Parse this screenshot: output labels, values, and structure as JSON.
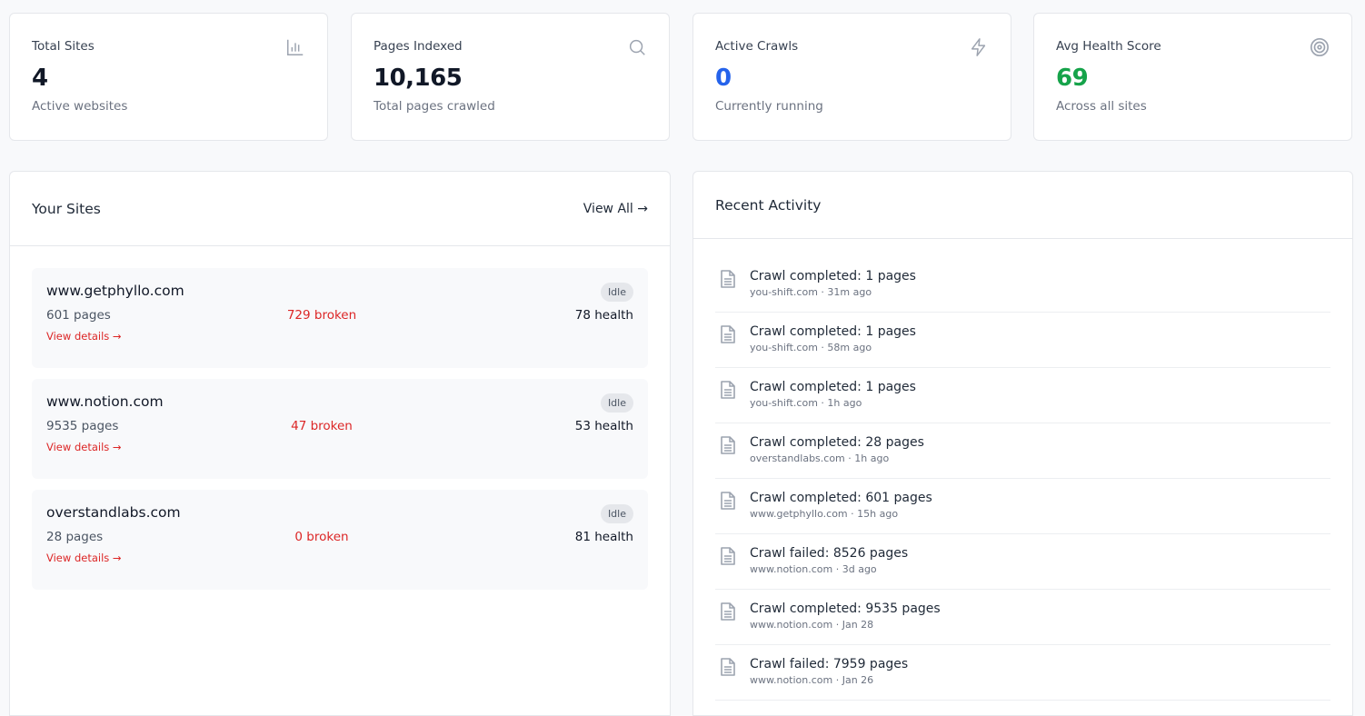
{
  "stats": [
    {
      "label": "Total Sites",
      "value": "4",
      "sub": "Active websites",
      "icon": "bar-chart-icon",
      "color": "#111827"
    },
    {
      "label": "Pages Indexed",
      "value": "10,165",
      "sub": "Total pages crawled",
      "icon": "search-icon",
      "color": "#111827"
    },
    {
      "label": "Active Crawls",
      "value": "0",
      "sub": "Currently running",
      "icon": "lightning-icon",
      "color": "#2563eb"
    },
    {
      "label": "Avg Health Score",
      "value": "69",
      "sub": "Across all sites",
      "icon": "target-icon",
      "color": "#16a34a"
    }
  ],
  "sites_panel": {
    "title": "Your Sites",
    "view_all": "View All →"
  },
  "sites": [
    {
      "name": "www.getphyllo.com",
      "status": "Idle",
      "pages": "601 pages",
      "broken": "729 broken",
      "health": "78 health",
      "link": "View details →"
    },
    {
      "name": "www.notion.com",
      "status": "Idle",
      "pages": "9535 pages",
      "broken": "47 broken",
      "health": "53 health",
      "link": "View details →"
    },
    {
      "name": "overstandlabs.com",
      "status": "Idle",
      "pages": "28 pages",
      "broken": "0 broken",
      "health": "81 health",
      "link": "View details →"
    }
  ],
  "activity_panel": {
    "title": "Recent Activity"
  },
  "activity": [
    {
      "title": "Crawl completed: 1 pages",
      "meta": "you-shift.com · 31m ago"
    },
    {
      "title": "Crawl completed: 1 pages",
      "meta": "you-shift.com · 58m ago"
    },
    {
      "title": "Crawl completed: 1 pages",
      "meta": "you-shift.com · 1h ago"
    },
    {
      "title": "Crawl completed: 28 pages",
      "meta": "overstandlabs.com · 1h ago"
    },
    {
      "title": "Crawl completed: 601 pages",
      "meta": "www.getphyllo.com · 15h ago"
    },
    {
      "title": "Crawl failed: 8526 pages",
      "meta": "www.notion.com · 3d ago"
    },
    {
      "title": "Crawl completed: 9535 pages",
      "meta": "www.notion.com · Jan 28"
    },
    {
      "title": "Crawl failed: 7959 pages",
      "meta": "www.notion.com · Jan 26"
    }
  ]
}
